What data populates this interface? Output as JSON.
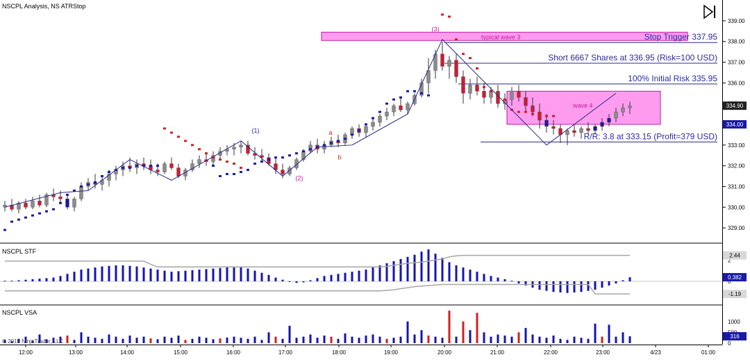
{
  "panels": {
    "main_title": "NSCPL Analysis, NS ATRStop",
    "stf_title": "NSCPL STF",
    "vsa_title": "NSCPL VSA",
    "copyright": "© 2015 NinjaTrader, LLC"
  },
  "colors": {
    "up_candle": "#8c8c8c",
    "down_candle": "#cc1b36",
    "wick": "#333333",
    "stop_long": "#1a1aa6",
    "stop_short": "#d02020",
    "wave_line": "#2a2a88",
    "zone_fill": "#ff9cf0",
    "zone_stroke": "#c01aa0",
    "level_line": "#2a2a88",
    "level_text": "#2a2aa0",
    "hist": "#1515b0",
    "bands": "#a6a6a6",
    "vol_up": "#1515b0",
    "vol_down": "#d02020"
  },
  "chart_data": [
    {
      "type": "candlestick",
      "name_label": "NSCPL Analysis, NS ATRStop",
      "x_ticks": [
        "12:00",
        "13:00",
        "14:00",
        "15:00",
        "16:00",
        "17:00",
        "18:00",
        "19:00",
        "20:00",
        "21:00",
        "22:00",
        "23:00",
        "4/23",
        "01:00"
      ],
      "y_ticks": [
        329.0,
        330.0,
        331.0,
        332.0,
        333.0,
        334.0,
        335.0,
        336.0,
        337.0,
        338.0,
        339.0
      ],
      "ylim": [
        328.6,
        339.4
      ],
      "last_price": "334.90",
      "zone_price": "334.00",
      "ohlc": [
        [
          330.0,
          330.3,
          329.8,
          330.1
        ],
        [
          330.1,
          330.4,
          329.8,
          329.9
        ],
        [
          329.9,
          330.3,
          329.7,
          330.2
        ],
        [
          330.2,
          330.4,
          329.9,
          330.0
        ],
        [
          330.0,
          330.5,
          329.9,
          330.3
        ],
        [
          330.3,
          330.6,
          330.0,
          330.1
        ],
        [
          330.1,
          330.7,
          330.0,
          330.6
        ],
        [
          330.6,
          330.9,
          330.3,
          330.5
        ],
        [
          330.5,
          330.8,
          330.2,
          330.4
        ],
        [
          330.4,
          330.6,
          329.9,
          330.0
        ],
        [
          330.0,
          330.5,
          329.8,
          330.4
        ],
        [
          330.4,
          331.2,
          330.3,
          331.0
        ],
        [
          331.0,
          331.4,
          330.8,
          331.2
        ],
        [
          331.2,
          331.6,
          330.9,
          331.1
        ],
        [
          331.1,
          331.5,
          330.8,
          331.3
        ],
        [
          331.3,
          331.8,
          331.0,
          331.6
        ],
        [
          331.6,
          332.0,
          331.3,
          331.8
        ],
        [
          331.8,
          332.2,
          331.5,
          332.0
        ],
        [
          332.0,
          332.4,
          331.7,
          331.9
        ],
        [
          331.9,
          332.3,
          331.6,
          332.1
        ],
        [
          332.1,
          332.4,
          331.8,
          332.0
        ],
        [
          332.0,
          332.3,
          331.6,
          331.8
        ],
        [
          331.8,
          332.1,
          331.5,
          331.7
        ],
        [
          331.7,
          332.2,
          331.6,
          332.1
        ],
        [
          332.1,
          332.4,
          331.8,
          331.9
        ],
        [
          331.9,
          332.1,
          331.4,
          331.5
        ],
        [
          331.5,
          331.9,
          331.3,
          331.8
        ],
        [
          331.8,
          332.3,
          331.7,
          332.1
        ],
        [
          332.1,
          332.5,
          331.9,
          332.3
        ],
        [
          332.3,
          332.6,
          332.0,
          332.2
        ],
        [
          332.2,
          332.7,
          332.0,
          332.5
        ],
        [
          332.5,
          332.9,
          332.3,
          332.7
        ],
        [
          332.7,
          333.0,
          332.5,
          332.8
        ],
        [
          332.8,
          333.1,
          332.5,
          332.9
        ],
        [
          332.9,
          333.2,
          332.6,
          333.0
        ],
        [
          333.0,
          333.2,
          332.5,
          332.6
        ],
        [
          332.6,
          332.9,
          332.3,
          332.5
        ],
        [
          332.5,
          332.8,
          332.2,
          332.4
        ],
        [
          332.4,
          332.6,
          332.0,
          332.1
        ],
        [
          332.1,
          332.4,
          331.6,
          331.8
        ],
        [
          331.8,
          332.1,
          331.4,
          331.6
        ],
        [
          331.6,
          332.0,
          331.5,
          331.9
        ],
        [
          331.9,
          332.4,
          331.8,
          332.3
        ],
        [
          332.3,
          332.8,
          332.2,
          332.7
        ],
        [
          332.7,
          333.2,
          332.6,
          333.0
        ],
        [
          333.0,
          333.3,
          332.6,
          332.8
        ],
        [
          332.8,
          333.2,
          332.6,
          333.0
        ],
        [
          333.0,
          333.4,
          332.9,
          333.2
        ],
        [
          333.2,
          333.5,
          332.9,
          333.1
        ],
        [
          333.1,
          333.6,
          333.0,
          333.5
        ],
        [
          333.5,
          333.9,
          333.3,
          333.8
        ],
        [
          333.8,
          334.0,
          333.4,
          333.6
        ],
        [
          333.6,
          334.0,
          333.4,
          333.9
        ],
        [
          333.9,
          334.3,
          333.7,
          334.1
        ],
        [
          334.1,
          334.5,
          333.9,
          334.4
        ],
        [
          334.4,
          334.8,
          334.2,
          334.6
        ],
        [
          334.6,
          335.0,
          334.4,
          334.9
        ],
        [
          334.9,
          335.3,
          334.6,
          334.7
        ],
        [
          334.7,
          335.1,
          334.5,
          335.0
        ],
        [
          335.0,
          335.5,
          334.9,
          335.4
        ],
        [
          335.4,
          336.2,
          335.3,
          336.0
        ],
        [
          336.0,
          337.2,
          335.5,
          336.6
        ],
        [
          336.6,
          337.6,
          336.2,
          337.4
        ],
        [
          337.4,
          338.0,
          336.6,
          336.8
        ],
        [
          336.8,
          337.3,
          336.2,
          337.1
        ],
        [
          337.1,
          337.4,
          336.0,
          336.3
        ],
        [
          336.3,
          336.6,
          335.0,
          335.5
        ],
        [
          335.5,
          336.2,
          335.2,
          335.9
        ],
        [
          335.9,
          336.3,
          335.4,
          335.6
        ],
        [
          335.6,
          336.0,
          335.0,
          335.3
        ],
        [
          335.3,
          335.8,
          335.0,
          335.6
        ],
        [
          335.6,
          335.9,
          334.8,
          335.0
        ],
        [
          335.0,
          335.5,
          334.7,
          335.2
        ],
        [
          335.2,
          335.8,
          334.9,
          335.6
        ],
        [
          335.6,
          335.9,
          335.1,
          335.3
        ],
        [
          335.3,
          335.6,
          334.6,
          334.9
        ],
        [
          334.9,
          335.3,
          334.4,
          334.6
        ],
        [
          334.6,
          335.0,
          333.8,
          334.2
        ],
        [
          334.2,
          334.5,
          333.6,
          333.9
        ],
        [
          333.9,
          334.2,
          333.5,
          333.8
        ],
        [
          333.8,
          334.0,
          333.1,
          333.5
        ],
        [
          333.5,
          333.8,
          333.0,
          333.7
        ],
        [
          333.7,
          334.0,
          333.4,
          333.6
        ],
        [
          333.6,
          333.9,
          333.3,
          333.8
        ],
        [
          333.8,
          334.1,
          333.5,
          333.7
        ],
        [
          333.7,
          334.0,
          333.5,
          333.9
        ],
        [
          333.9,
          334.3,
          333.7,
          334.1
        ],
        [
          334.1,
          334.5,
          333.9,
          334.3
        ],
        [
          334.3,
          334.8,
          334.1,
          334.6
        ],
        [
          334.6,
          335.0,
          334.4,
          334.8
        ],
        [
          334.8,
          335.1,
          334.5,
          334.9
        ]
      ],
      "stop_long_values": [
        328.9,
        329.3,
        329.4,
        329.5,
        329.6,
        329.7,
        329.8,
        329.9,
        330.2,
        330.6,
        330.8,
        331.0,
        331.1,
        331.2,
        331.5,
        331.7,
        331.8,
        331.9,
        331.9,
        332.0,
        332.0,
        332.0,
        332.0,
        332.0,
        331.5,
        331.6,
        331.6,
        331.7,
        331.8,
        332.1,
        332.2,
        332.3,
        332.4,
        332.4,
        332.5,
        332.6,
        332.7,
        332.8,
        332.9,
        333.0,
        333.1,
        333.2,
        333.3,
        333.5,
        333.7,
        334.0,
        334.3,
        334.6,
        335.0,
        335.2,
        335.3,
        335.6,
        335.6,
        335.5,
        335.4
      ],
      "stop_short_values": [
        333.8,
        333.6,
        333.4,
        333.2,
        333.0,
        332.8,
        332.6,
        332.4,
        332.3,
        332.2,
        332.1,
        331.9,
        339.3,
        339.2,
        338.1,
        337.4,
        337.2,
        336.7,
        335.8,
        335.6,
        335.4,
        335.2,
        334.7,
        334.6,
        334.6,
        334.5,
        334.5,
        334.4,
        334.4
      ],
      "wave_line": [
        [
          0,
          330.0
        ],
        [
          8,
          330.7
        ],
        [
          12,
          330.8
        ],
        [
          18,
          332.3
        ],
        [
          24,
          331.3
        ],
        [
          34,
          333.2
        ],
        [
          40,
          331.5
        ],
        [
          45,
          332.9
        ],
        [
          50,
          333.0
        ],
        [
          58,
          334.5
        ],
        [
          63,
          338.1
        ],
        [
          78,
          333.0
        ],
        [
          88,
          335.5
        ]
      ],
      "wave_labels": [
        "(1)",
        "(2)",
        "(3)",
        "a",
        "b"
      ],
      "zones": [
        {
          "label": "typical wave 3",
          "y_top": 338.45,
          "y_bottom": 338.05
        },
        {
          "label": "wave 4",
          "y_top": 335.6,
          "y_bottom": 334.0
        }
      ],
      "levels": [
        {
          "label": "Stop Trigger 337.95",
          "value": 337.95
        },
        {
          "label": "Short 6667 Shares at 336.95 (Risk=100 USD)",
          "value": 336.95
        },
        {
          "label": "100% Initial Risk 335.95",
          "value": 335.95
        },
        {
          "label": "R/R: 3.8 at 333.15 (Profit=379 USD)",
          "value": 333.15
        }
      ]
    },
    {
      "type": "bar",
      "name_label": "NSCPL STF",
      "y_ticks": [
        2,
        0
      ],
      "ylim": [
        -1.9,
        3.2
      ],
      "band_upper_label": "2.44",
      "band_lower_label": "-1.19",
      "last_value_label": "0.382",
      "values": [
        0.05,
        0.05,
        0.1,
        0.15,
        0.2,
        0.25,
        0.3,
        0.35,
        0.5,
        0.7,
        0.9,
        1.1,
        1.2,
        1.3,
        1.4,
        1.45,
        1.5,
        1.5,
        1.45,
        1.4,
        1.3,
        1.2,
        1.1,
        1.0,
        0.9,
        0.95,
        1.0,
        1.05,
        1.1,
        1.15,
        1.2,
        1.25,
        1.3,
        1.35,
        1.3,
        1.2,
        1.0,
        0.8,
        0.6,
        0.35,
        0.15,
        0.0,
        -0.15,
        -0.1,
        0.1,
        0.3,
        0.5,
        0.6,
        0.7,
        0.8,
        0.9,
        1.0,
        1.1,
        1.3,
        1.5,
        1.7,
        1.9,
        2.1,
        2.3,
        2.5,
        2.8,
        3.0,
        2.6,
        2.2,
        1.8,
        1.5,
        1.3,
        1.1,
        0.9,
        0.7,
        0.5,
        0.35,
        0.2,
        0.05,
        -0.2,
        -0.4,
        -0.6,
        -0.8,
        -0.9,
        -1.0,
        -1.05,
        -1.1,
        -1.05,
        -1.0,
        -0.9,
        -0.8,
        -0.6,
        -0.4,
        -0.2,
        0.1,
        0.38
      ],
      "band_upper": [
        1.9,
        1.9,
        1.9,
        1.9,
        1.9,
        1.9,
        1.9,
        1.9,
        1.9,
        1.9,
        1.9,
        1.9,
        1.9,
        1.9,
        1.9,
        1.9,
        1.9,
        1.9,
        1.9,
        1.9,
        1.9,
        1.6,
        1.35,
        1.35,
        1.35,
        1.35,
        1.35,
        1.35,
        1.35,
        1.35,
        1.35,
        1.35,
        1.35,
        1.35,
        1.35,
        1.35,
        1.35,
        1.35,
        1.35,
        1.35,
        1.35,
        1.35,
        1.35,
        1.35,
        1.35,
        1.35,
        1.35,
        1.35,
        1.35,
        1.35,
        1.35,
        1.35,
        1.35,
        1.35,
        1.35,
        1.4,
        1.5,
        1.6,
        1.7,
        1.75,
        1.8,
        1.9,
        2.0,
        2.1,
        2.3,
        2.4,
        2.44,
        2.44,
        2.44,
        2.44,
        2.44,
        2.44,
        2.44,
        2.44,
        2.44,
        2.44,
        2.44,
        2.44,
        2.44,
        2.44,
        2.44,
        2.44,
        2.44,
        2.44,
        2.44,
        2.44,
        2.44,
        2.44,
        2.44,
        2.44,
        2.44
      ],
      "band_lower": [
        -0.9,
        -0.9,
        -0.9,
        -0.9,
        -0.9,
        -0.9,
        -0.9,
        -0.9,
        -0.9,
        -0.9,
        -0.9,
        -0.9,
        -0.9,
        -0.9,
        -0.9,
        -0.9,
        -0.9,
        -0.9,
        -0.9,
        -0.9,
        -0.9,
        -0.9,
        -0.9,
        -0.9,
        -0.9,
        -0.9,
        -0.9,
        -0.9,
        -0.9,
        -0.9,
        -0.9,
        -0.9,
        -0.9,
        -0.9,
        -0.9,
        -0.9,
        -0.9,
        -0.9,
        -0.9,
        -0.9,
        -0.9,
        -0.9,
        -0.9,
        -0.9,
        -0.9,
        -0.9,
        -0.9,
        -0.9,
        -0.9,
        -0.9,
        -0.9,
        -0.9,
        -0.9,
        -0.9,
        -0.9,
        -0.85,
        -0.8,
        -0.7,
        -0.6,
        -0.5,
        -0.45,
        -0.4,
        -0.35,
        -0.3,
        -0.3,
        -0.3,
        -0.3,
        -0.3,
        -0.3,
        -0.3,
        -0.3,
        -0.3,
        -0.3,
        -0.3,
        -0.3,
        -0.3,
        -0.3,
        -0.3,
        -0.3,
        -0.3,
        -0.3,
        -0.3,
        -0.3,
        -0.3,
        -0.3,
        -1.19,
        -1.19,
        -1.19,
        -1.19,
        -1.19,
        -1.19
      ]
    },
    {
      "type": "bar",
      "name_label": "NSCPL VSA",
      "y_ticks": [
        1000,
        500,
        0
      ],
      "ylim": [
        0,
        1600
      ],
      "last_value_label": "316",
      "values": [
        150,
        100,
        200,
        300,
        120,
        400,
        180,
        250,
        300,
        350,
        150,
        500,
        300,
        250,
        200,
        400,
        300,
        200,
        350,
        250,
        300,
        220,
        180,
        300,
        250,
        350,
        150,
        200,
        300,
        250,
        180,
        220,
        260,
        300,
        250,
        200,
        300,
        150,
        500,
        300,
        200,
        800,
        250,
        300,
        400,
        250,
        350,
        300,
        200,
        450,
        300,
        250,
        350,
        400,
        300,
        200,
        250,
        300,
        1000,
        400,
        600,
        350,
        300,
        250,
        1500,
        300,
        1000,
        600,
        1400,
        500,
        300,
        400,
        350,
        300,
        500,
        700,
        400,
        300,
        250,
        350,
        200,
        150,
        300,
        250,
        200,
        900,
        300,
        850,
        300,
        500,
        316
      ],
      "down_indices": [
        9,
        21,
        26,
        31,
        39,
        47,
        55,
        61,
        64,
        66,
        68,
        74,
        86
      ]
    }
  ]
}
